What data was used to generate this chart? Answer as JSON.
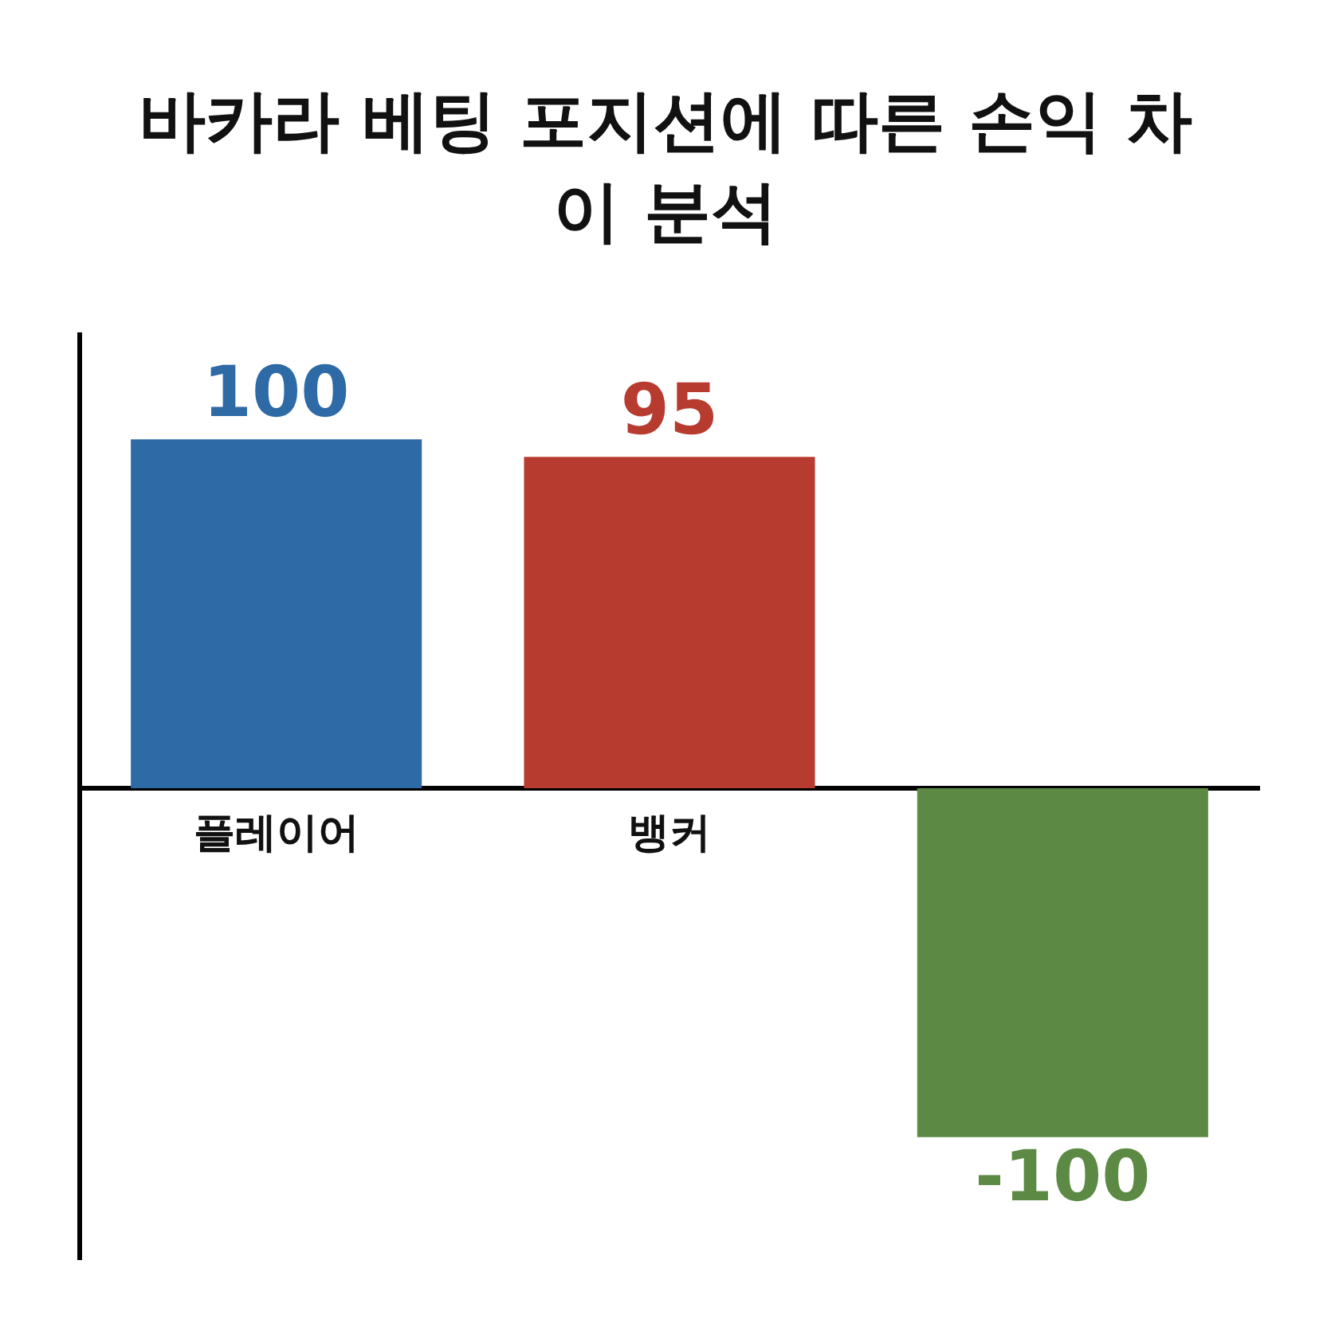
{
  "chart_data": {
    "type": "bar",
    "title": "바카라 베팅 포지션에 따른 손익 차이 분석",
    "categories": [
      "플레이어",
      "뱅커",
      null
    ],
    "values": [
      100,
      95,
      -100
    ],
    "colors": [
      "#2e6aa6",
      "#b83b30",
      "#5c8a45"
    ],
    "data_labels": true,
    "grid": false,
    "legend": false,
    "tick_labels": "x"
  }
}
